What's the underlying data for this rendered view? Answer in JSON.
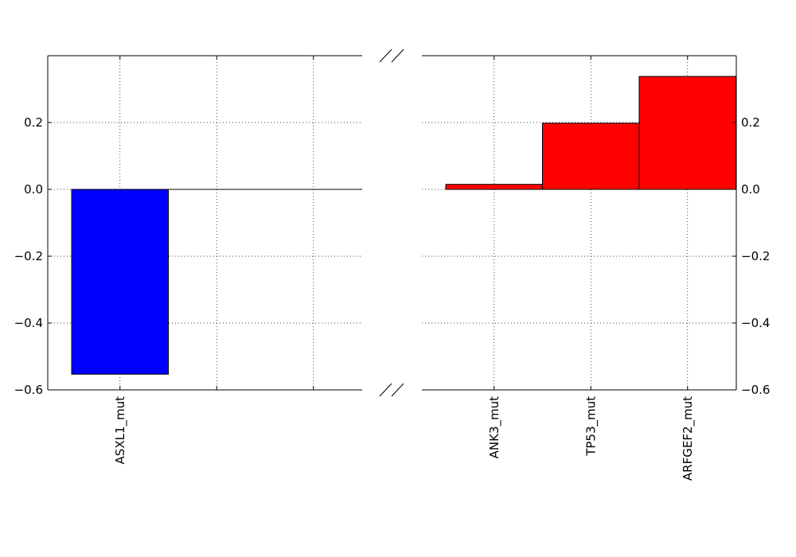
{
  "chart_data": {
    "type": "bar",
    "broken_axis": true,
    "grid": true,
    "ylim": [
      -0.6,
      0.4
    ],
    "yticks": [
      0.2,
      0.0,
      -0.2,
      -0.4,
      -0.6
    ],
    "ytick_labels": [
      "0.2",
      "0.0",
      "−0.2",
      "−0.4",
      "−0.6"
    ],
    "left_panel": {
      "slots": 3,
      "bars": [
        {
          "category": "ASXL1_mut",
          "value": -0.553,
          "color": "#0000ff"
        }
      ]
    },
    "right_panel": {
      "slots": 3,
      "bars": [
        {
          "category": "ANK3_mut",
          "value": 0.015,
          "color": "#ff0000"
        },
        {
          "category": "TP53_mut",
          "value": 0.198,
          "color": "#ff0000"
        },
        {
          "category": "ARFGEF2_mut",
          "value": 0.338,
          "color": "#ff0000"
        }
      ]
    }
  }
}
